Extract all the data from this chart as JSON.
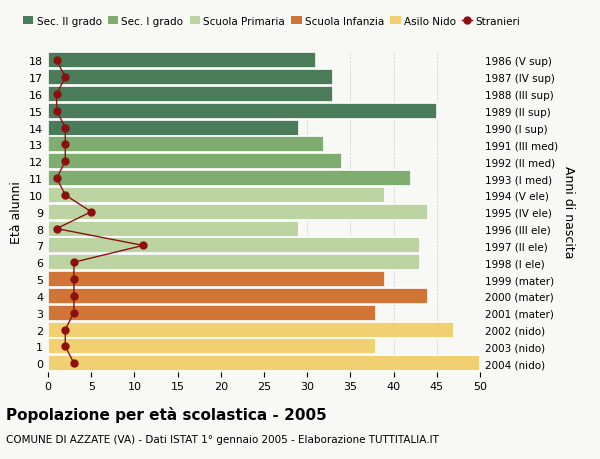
{
  "ages": [
    18,
    17,
    16,
    15,
    14,
    13,
    12,
    11,
    10,
    9,
    8,
    7,
    6,
    5,
    4,
    3,
    2,
    1,
    0
  ],
  "years": [
    "1986 (V sup)",
    "1987 (IV sup)",
    "1988 (III sup)",
    "1989 (II sup)",
    "1990 (I sup)",
    "1991 (III med)",
    "1992 (II med)",
    "1993 (I med)",
    "1994 (V ele)",
    "1995 (IV ele)",
    "1996 (III ele)",
    "1997 (II ele)",
    "1998 (I ele)",
    "1999 (mater)",
    "2000 (mater)",
    "2001 (mater)",
    "2002 (nido)",
    "2003 (nido)",
    "2004 (nido)"
  ],
  "bar_values": [
    31,
    33,
    33,
    45,
    29,
    32,
    34,
    42,
    39,
    44,
    29,
    43,
    43,
    39,
    44,
    38,
    47,
    38,
    50
  ],
  "bar_colors": [
    "#4a7c59",
    "#4a7c59",
    "#4a7c59",
    "#4a7c59",
    "#4a7c59",
    "#7fad70",
    "#7fad70",
    "#7fad70",
    "#bcd4a2",
    "#bcd4a2",
    "#bcd4a2",
    "#bcd4a2",
    "#bcd4a2",
    "#d07535",
    "#d07535",
    "#d07535",
    "#f0d070",
    "#f0d070",
    "#f0d070"
  ],
  "stranieri_values": [
    1,
    2,
    1,
    1,
    2,
    2,
    2,
    1,
    2,
    5,
    1,
    11,
    3,
    3,
    3,
    3,
    2,
    2,
    3
  ],
  "legend_labels": [
    "Sec. II grado",
    "Sec. I grado",
    "Scuola Primaria",
    "Scuola Infanzia",
    "Asilo Nido",
    "Stranieri"
  ],
  "legend_colors": [
    "#4a7c59",
    "#7fad70",
    "#bcd4a2",
    "#d07535",
    "#f0d070",
    "#aa1111"
  ],
  "ylabel": "Età alunni",
  "ylabel_right": "Anni di nascita",
  "title": "Popolazione per età scolastica - 2005",
  "subtitle": "COMUNE DI AZZATE (VA) - Dati ISTAT 1° gennaio 2005 - Elaborazione TUTTITALIA.IT",
  "xlim": [
    0,
    50
  ],
  "background_color": "#f8f8f5",
  "plot_bg_color": "#f8f8f5",
  "stranieri_color": "#8b1111",
  "stranieri_markersize": 5,
  "stranieri_linewidth": 1.0
}
